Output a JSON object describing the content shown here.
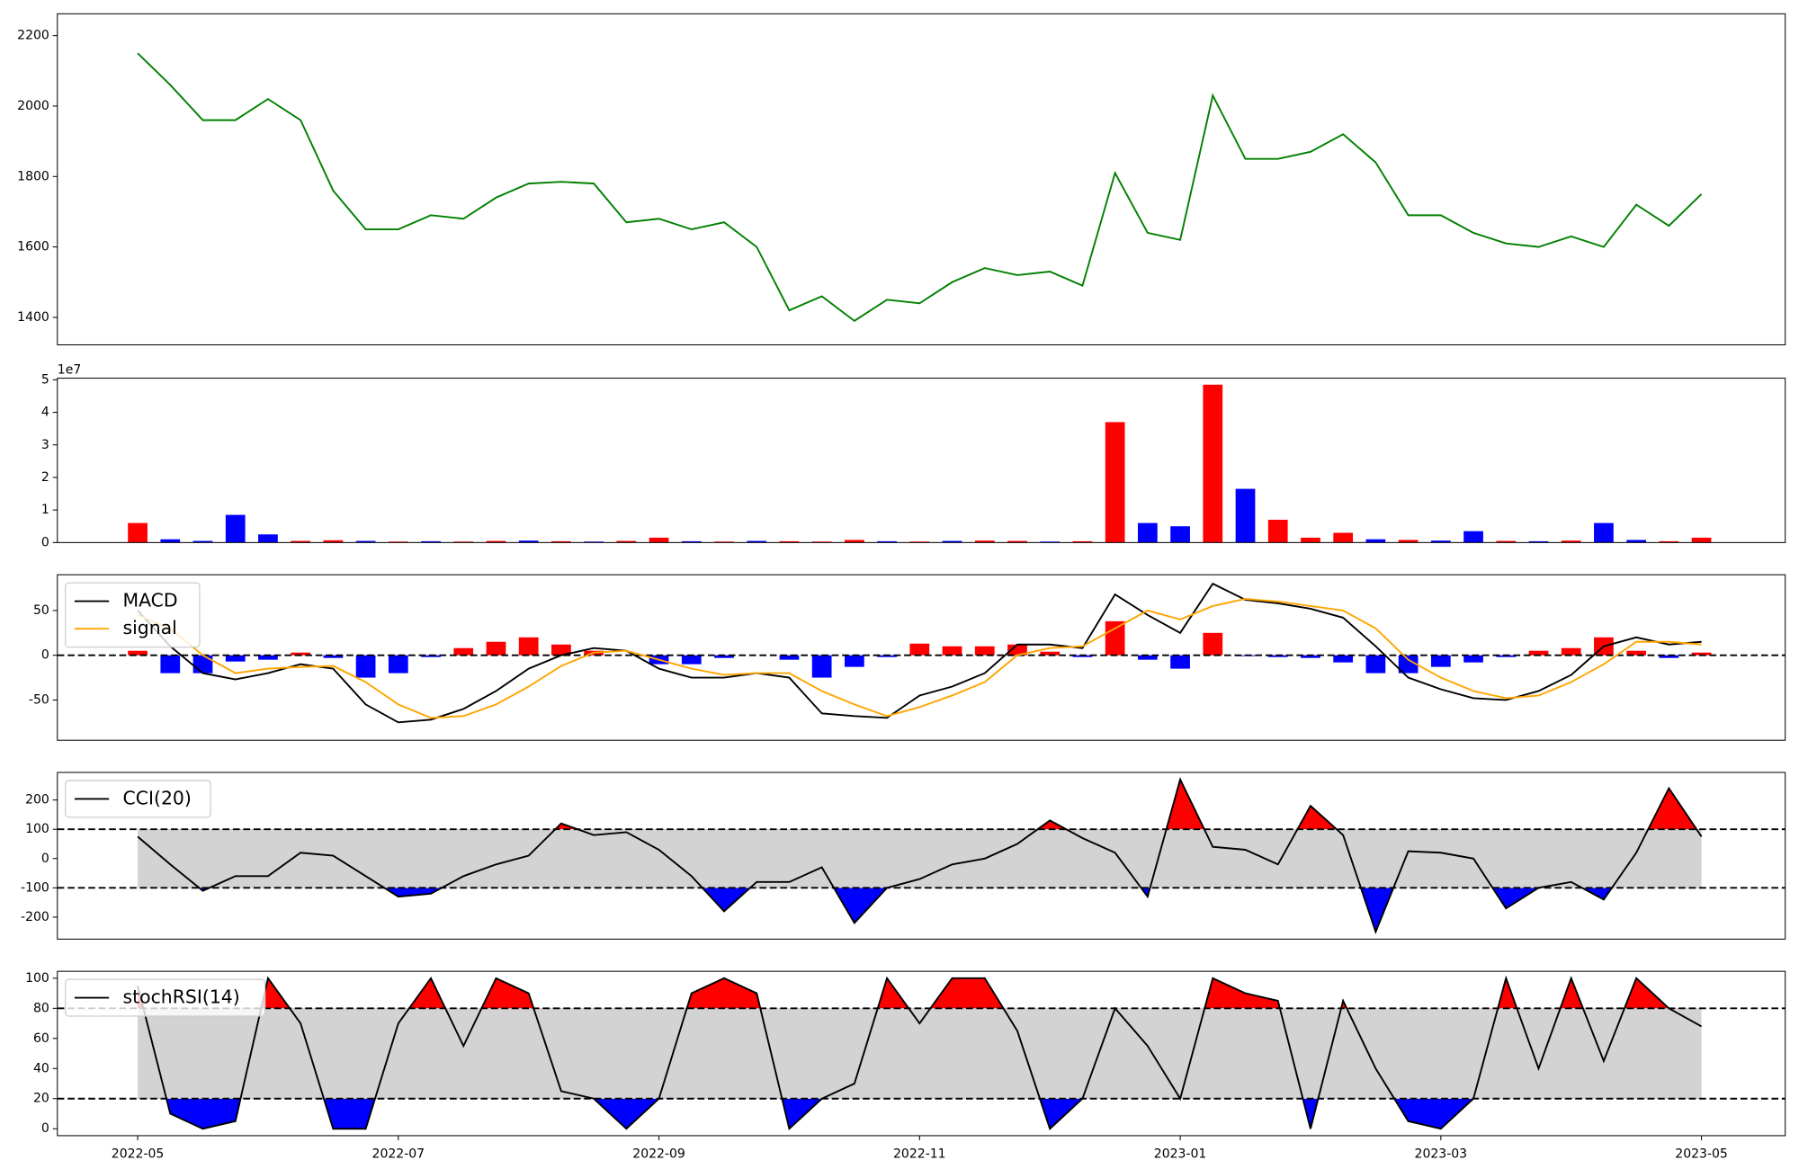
{
  "chart_data": [
    {
      "type": "line",
      "series": [
        {
          "color": "green",
          "values": [
            2150,
            2060,
            1960,
            1960,
            2020,
            1960,
            1760,
            1650,
            1650,
            1690,
            1680,
            1740,
            1780,
            1785,
            1780,
            1670,
            1680,
            1650,
            1670,
            1600,
            1420,
            1460,
            1390,
            1450,
            1440,
            1500,
            1540,
            1520,
            1530,
            1490,
            1810,
            1640,
            1620,
            2030,
            1850,
            1850,
            1870,
            1920,
            1840,
            1690,
            1690,
            1640,
            1610,
            1600,
            1630,
            1600,
            1720,
            1660,
            1750
          ]
        }
      ],
      "ylim": [
        1322,
        2262
      ],
      "yticks": [
        1400,
        1600,
        1800,
        2000,
        2200
      ]
    },
    {
      "type": "bar",
      "values": [
        6000000,
        1000000,
        500000,
        8500000,
        2500000,
        500000,
        700000,
        500000,
        300000,
        400000,
        300000,
        500000,
        600000,
        400000,
        300000,
        500000,
        1500000,
        400000,
        300000,
        500000,
        400000,
        300000,
        800000,
        400000,
        300000,
        500000,
        600000,
        500000,
        300000,
        400000,
        37000000,
        6000000,
        5000000,
        48500000,
        16500000,
        7000000,
        1500000,
        3000000,
        1000000,
        800000,
        600000,
        3500000,
        500000,
        400000,
        600000,
        6000000,
        800000,
        400000,
        1500000
      ],
      "colors": [
        "red",
        "blue",
        "blue",
        "blue",
        "blue",
        "red",
        "red",
        "blue",
        "red",
        "blue",
        "red",
        "red",
        "blue",
        "red",
        "blue",
        "red",
        "red",
        "blue",
        "red",
        "blue",
        "red",
        "red",
        "red",
        "blue",
        "red",
        "blue",
        "red",
        "red",
        "blue",
        "red",
        "red",
        "blue",
        "blue",
        "red",
        "blue",
        "red",
        "red",
        "red",
        "blue",
        "red",
        "blue",
        "blue",
        "red",
        "blue",
        "red",
        "blue",
        "blue",
        "red",
        "red"
      ],
      "ylim": [
        0,
        50500000
      ],
      "yticks": [
        0,
        {
          "value": 10000000,
          "label": "1"
        },
        {
          "value": 20000000,
          "label": "2"
        },
        {
          "value": 30000000,
          "label": "3"
        },
        {
          "value": 40000000,
          "label": "4"
        },
        {
          "value": 50000000,
          "label": "5"
        }
      ],
      "y_offset_label": "1e7"
    },
    {
      "type": "line",
      "series": [
        {
          "name": "MACD",
          "color": "black",
          "values": [
            50,
            10,
            -20,
            -27,
            -20,
            -10,
            -15,
            -55,
            -75,
            -72,
            -60,
            -40,
            -15,
            0,
            8,
            5,
            -15,
            -25,
            -25,
            -20,
            -25,
            -65,
            -68,
            -70,
            -45,
            -35,
            -20,
            12,
            12,
            8,
            68,
            45,
            25,
            80,
            62,
            58,
            52,
            42,
            10,
            -25,
            -38,
            -48,
            -50,
            -40,
            -22,
            10,
            20,
            12,
            15
          ]
        },
        {
          "name": "signal",
          "color": "orange",
          "values": [
            45,
            30,
            0,
            -20,
            -15,
            -13,
            -12,
            -30,
            -55,
            -70,
            -68,
            -55,
            -35,
            -12,
            3,
            5,
            -5,
            -15,
            -22,
            -20,
            -20,
            -40,
            -55,
            -68,
            -58,
            -45,
            -30,
            0,
            8,
            10,
            30,
            50,
            40,
            55,
            63,
            60,
            55,
            50,
            30,
            -5,
            -25,
            -40,
            -48,
            -45,
            -30,
            -10,
            15,
            15,
            12
          ]
        }
      ],
      "histogram": {
        "values": [
          5,
          -20,
          -20,
          -7,
          -5,
          3,
          -3,
          -25,
          -20,
          -2,
          8,
          15,
          20,
          12,
          5,
          0,
          -10,
          -10,
          -3,
          0,
          -5,
          -25,
          -13,
          -2,
          13,
          10,
          10,
          12,
          4,
          -2,
          38,
          -5,
          -15,
          25,
          -1,
          -2,
          -3,
          -8,
          -20,
          -20,
          -13,
          -8,
          -2,
          5,
          8,
          20,
          5,
          -3,
          3
        ],
        "pos_color": "red",
        "neg_color": "blue"
      },
      "hline": 0,
      "ylim": [
        -95,
        90
      ],
      "yticks": [
        -50,
        0,
        50
      ],
      "legend": "upper left"
    },
    {
      "type": "line",
      "series": [
        {
          "name": "CCI(20)",
          "color": "black",
          "values": [
            75,
            -20,
            -110,
            -60,
            -60,
            20,
            10,
            -60,
            -130,
            -120,
            -60,
            -20,
            10,
            120,
            80,
            90,
            30,
            -60,
            -180,
            -80,
            -80,
            -30,
            -220,
            -100,
            -70,
            -20,
            0,
            50,
            130,
            70,
            20,
            -130,
            270,
            40,
            30,
            -20,
            180,
            80,
            -250,
            25,
            20,
            0,
            -170,
            -100,
            -80,
            -140,
            20,
            240,
            75
          ]
        }
      ],
      "band": [
        -100,
        100
      ],
      "band_color": "lightgray",
      "over_color": "red",
      "under_color": "blue",
      "ylim": [
        -275,
        294
      ],
      "yticks": [
        -200,
        -100,
        0,
        100,
        200
      ],
      "legend": "upper left"
    },
    {
      "type": "line",
      "series": [
        {
          "name": "stochRSI(14)",
          "color": "black",
          "values": [
            95,
            10,
            0,
            5,
            100,
            70,
            0,
            0,
            70,
            100,
            55,
            100,
            90,
            25,
            20,
            0,
            20,
            90,
            100,
            90,
            0,
            20,
            30,
            100,
            70,
            100,
            100,
            65,
            0,
            20,
            80,
            55,
            20,
            100,
            90,
            85,
            0,
            85,
            40,
            5,
            0,
            20,
            100,
            40,
            100,
            45,
            100,
            80,
            68
          ]
        }
      ],
      "band": [
        20,
        80
      ],
      "band_color": "lightgray",
      "over_color": "red",
      "under_color": "blue",
      "ylim": [
        -4.6,
        104.6
      ],
      "yticks": [
        0,
        20,
        40,
        60,
        80,
        100
      ],
      "legend": "upper left",
      "x": [
        "2022-05",
        null,
        null,
        null,
        null,
        null,
        null,
        null,
        "2022-07",
        null,
        null,
        null,
        null,
        null,
        null,
        null,
        "2022-09",
        null,
        null,
        null,
        null,
        null,
        null,
        null,
        "2022-11",
        null,
        null,
        null,
        null,
        null,
        null,
        null,
        "2023-01",
        null,
        null,
        null,
        null,
        null,
        null,
        null,
        "2023-03",
        null,
        null,
        null,
        null,
        null,
        null,
        null,
        "2023-05"
      ]
    }
  ]
}
